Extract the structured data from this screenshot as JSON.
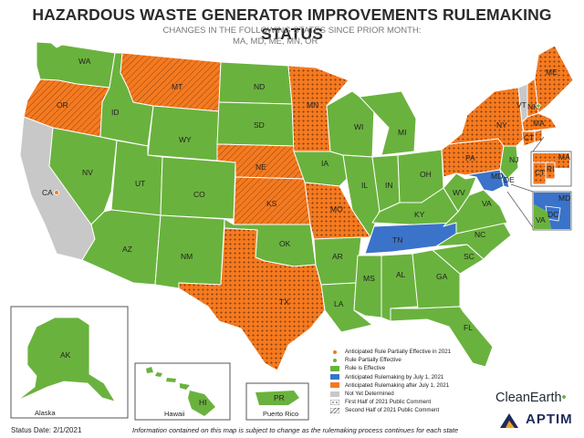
{
  "title": "HAZARDOUS WASTE GENERATOR IMPROVEMENTS RULEMAKING STATUS",
  "subtitle_line1": "CHANGES IN THE FOLLOWING STATES SINCE PRIOR MONTH:",
  "subtitle_line2": "MA, MD, ME, MN, OR",
  "colors": {
    "rule_effective": "#6ab23e",
    "anticipated_by_july": "#3a73c9",
    "anticipated_after_july": "#f47a20",
    "not_determined": "#c8c8c8",
    "border": "#ffffff"
  },
  "states": [
    {
      "abbr": "WA",
      "status": "rule_effective"
    },
    {
      "abbr": "OR",
      "status": "anticipated_after_july",
      "pattern": "second_half"
    },
    {
      "abbr": "CA",
      "status": "not_determined",
      "marker": "partial_2021"
    },
    {
      "abbr": "ID",
      "status": "rule_effective"
    },
    {
      "abbr": "NV",
      "status": "rule_effective"
    },
    {
      "abbr": "MT",
      "status": "anticipated_after_july",
      "pattern": "second_half"
    },
    {
      "abbr": "WY",
      "status": "rule_effective"
    },
    {
      "abbr": "UT",
      "status": "rule_effective"
    },
    {
      "abbr": "AZ",
      "status": "rule_effective"
    },
    {
      "abbr": "CO",
      "status": "rule_effective"
    },
    {
      "abbr": "NM",
      "status": "rule_effective"
    },
    {
      "abbr": "ND",
      "status": "rule_effective"
    },
    {
      "abbr": "SD",
      "status": "rule_effective"
    },
    {
      "abbr": "NE",
      "status": "anticipated_after_july",
      "pattern": "second_half"
    },
    {
      "abbr": "KS",
      "status": "anticipated_after_july",
      "pattern": "second_half"
    },
    {
      "abbr": "OK",
      "status": "rule_effective"
    },
    {
      "abbr": "TX",
      "status": "anticipated_after_july",
      "pattern": "first_half"
    },
    {
      "abbr": "MN",
      "status": "anticipated_after_july",
      "pattern": "first_half"
    },
    {
      "abbr": "IA",
      "status": "rule_effective"
    },
    {
      "abbr": "MO",
      "status": "anticipated_after_july",
      "pattern": "first_half"
    },
    {
      "abbr": "AR",
      "status": "rule_effective"
    },
    {
      "abbr": "LA",
      "status": "rule_effective"
    },
    {
      "abbr": "WI",
      "status": "rule_effective"
    },
    {
      "abbr": "IL",
      "status": "rule_effective"
    },
    {
      "abbr": "MI",
      "status": "rule_effective"
    },
    {
      "abbr": "IN",
      "status": "rule_effective"
    },
    {
      "abbr": "OH",
      "status": "rule_effective"
    },
    {
      "abbr": "KY",
      "status": "rule_effective"
    },
    {
      "abbr": "TN",
      "status": "anticipated_by_july"
    },
    {
      "abbr": "MS",
      "status": "rule_effective"
    },
    {
      "abbr": "AL",
      "status": "rule_effective"
    },
    {
      "abbr": "GA",
      "status": "rule_effective"
    },
    {
      "abbr": "FL",
      "status": "rule_effective"
    },
    {
      "abbr": "SC",
      "status": "rule_effective"
    },
    {
      "abbr": "NC",
      "status": "rule_effective"
    },
    {
      "abbr": "VA",
      "status": "rule_effective"
    },
    {
      "abbr": "WV",
      "status": "rule_effective"
    },
    {
      "abbr": "PA",
      "status": "anticipated_after_july",
      "pattern": "first_half"
    },
    {
      "abbr": "NY",
      "status": "anticipated_after_july",
      "pattern": "first_half"
    },
    {
      "abbr": "NJ",
      "status": "rule_effective"
    },
    {
      "abbr": "DE",
      "status": "anticipated_by_july"
    },
    {
      "abbr": "MD",
      "status": "anticipated_by_july"
    },
    {
      "abbr": "DC",
      "status": "anticipated_by_july"
    },
    {
      "abbr": "VT",
      "status": "not_determined"
    },
    {
      "abbr": "NH",
      "status": "anticipated_after_july",
      "pattern": "first_half",
      "marker": "partial"
    },
    {
      "abbr": "ME",
      "status": "anticipated_after_july",
      "pattern": "first_half"
    },
    {
      "abbr": "MA",
      "status": "anticipated_after_july",
      "pattern": "first_half"
    },
    {
      "abbr": "CT",
      "status": "anticipated_after_july",
      "pattern": "first_half"
    },
    {
      "abbr": "RI",
      "status": "anticipated_after_july",
      "pattern": "first_half"
    },
    {
      "abbr": "AK",
      "status": "rule_effective"
    },
    {
      "abbr": "HI",
      "status": "rule_effective"
    },
    {
      "abbr": "PR",
      "status": "rule_effective"
    }
  ],
  "inset_captions": {
    "alaska": "Alaska",
    "hawaii": "Hawaii",
    "puerto_rico": "Puerto Rico"
  },
  "legend": [
    {
      "key": "marker_partial_2021",
      "label": "Anticipated Rule Partially Effective in 2021"
    },
    {
      "key": "marker_partial",
      "label": "Rule Partially Effective"
    },
    {
      "key": "rule_effective",
      "label": "Rule is Effective"
    },
    {
      "key": "anticipated_by_july",
      "label": "Anticipated Rulemaking by July 1, 2021"
    },
    {
      "key": "anticipated_after_july",
      "label": "Anticipated Rulemaking after July 1, 2021"
    },
    {
      "key": "not_determined",
      "label": "Not Yet Determined"
    },
    {
      "key": "first_half",
      "label": "First Half of 2021 Public Comment"
    },
    {
      "key": "second_half",
      "label": "Second Half of 2021 Public Comment"
    }
  ],
  "status_date": "Status Date:  2/1/2021",
  "disclaimer": "Information contained on this map is subject to change as the rulemaking process continues for each state",
  "logos": {
    "clean_earth": "CleanEarth",
    "aptim": "APTIM"
  }
}
